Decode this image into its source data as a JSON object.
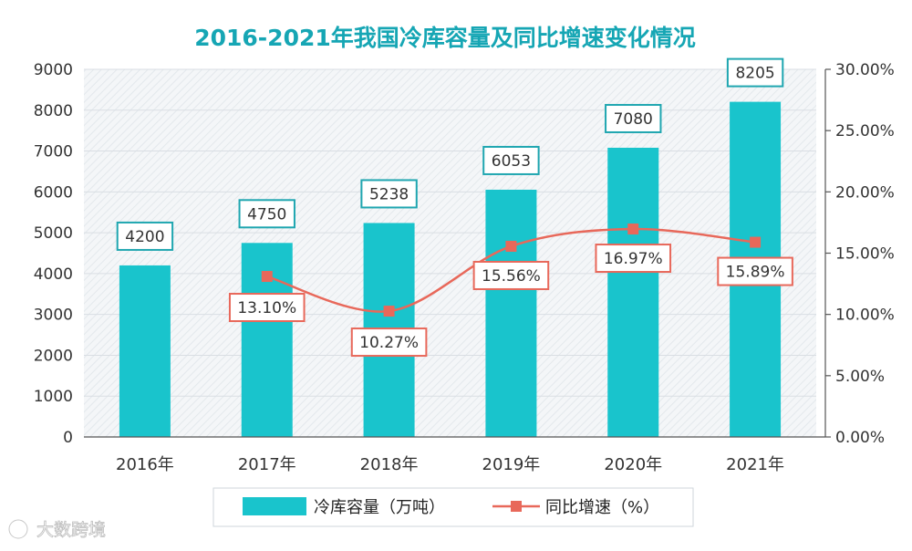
{
  "chart_data": {
    "type": "bar",
    "title": "2016-2021年我国冷库容量及同比增速变化情况",
    "categories": [
      "2016年",
      "2017年",
      "2018年",
      "2019年",
      "2020年",
      "2021年"
    ],
    "series": [
      {
        "name": "冷库容量（万吨）",
        "type": "bar",
        "axis": "left",
        "values": [
          4200,
          4750,
          5238,
          6053,
          7080,
          8205
        ],
        "labels": [
          "4200",
          "4750",
          "5238",
          "6053",
          "7080",
          "8205"
        ]
      },
      {
        "name": "同比增速（%）",
        "type": "line",
        "axis": "right",
        "values": [
          null,
          13.1,
          10.27,
          15.56,
          16.97,
          15.89
        ],
        "labels": [
          "",
          "13.10%",
          "10.27%",
          "15.56%",
          "16.97%",
          "15.89%"
        ]
      }
    ],
    "y_left": {
      "min": 0,
      "max": 9000,
      "ticks": [
        "0",
        "1000",
        "2000",
        "3000",
        "4000",
        "5000",
        "6000",
        "7000",
        "8000",
        "9000"
      ]
    },
    "y_right": {
      "min": 0,
      "max": 30,
      "ticks": [
        "0.00%",
        "5.00%",
        "10.00%",
        "15.00%",
        "20.00%",
        "25.00%",
        "30.00%"
      ]
    },
    "legend_position": "bottom",
    "grid": true,
    "colors": {
      "bar": "#19c4cc",
      "line": "#e8685a",
      "title": "#16a6b4",
      "label_border": "#1fa6b0",
      "pct_border": "#e8685a"
    }
  },
  "watermark": "大数跨境"
}
